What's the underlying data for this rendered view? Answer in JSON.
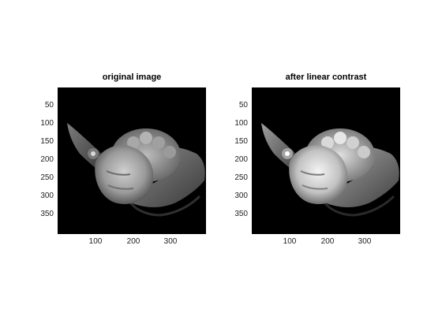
{
  "figure": {
    "background": "#ffffff",
    "subplots": [
      {
        "title": "original image",
        "image_description": "grayscale photo: marble head sculpture held by hands on black background",
        "contrast": "original",
        "yticks": [
          "50",
          "100",
          "150",
          "200",
          "250",
          "300",
          "350"
        ],
        "xticks": [
          "100",
          "200",
          "300"
        ]
      },
      {
        "title": "after linear contrast",
        "image_description": "same photo after linear contrast stretch (brighter highlights)",
        "contrast": "enhanced",
        "yticks": [
          "50",
          "100",
          "150",
          "200",
          "250",
          "300",
          "350"
        ],
        "xticks": [
          "100",
          "200",
          "300"
        ]
      }
    ]
  }
}
